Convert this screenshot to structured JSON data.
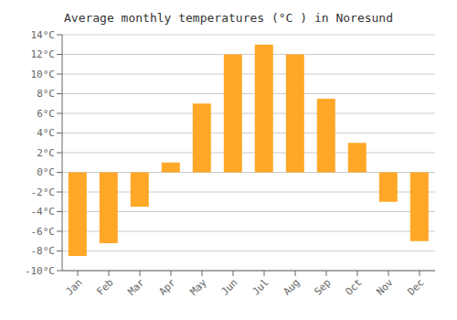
{
  "chart_data": {
    "type": "bar",
    "title": "Average monthly temperatures (°C ) in Noresund",
    "categories": [
      "Jan",
      "Feb",
      "Mar",
      "Apr",
      "May",
      "Jun",
      "Jul",
      "Aug",
      "Sep",
      "Oct",
      "Nov",
      "Dec"
    ],
    "values": [
      -8.5,
      -7.2,
      -3.5,
      1.0,
      7.0,
      12.0,
      13.0,
      12.0,
      7.5,
      3.0,
      -3.0,
      -7.0
    ],
    "color": "#FFA828",
    "ylim": [
      -10,
      14
    ],
    "yticks": [
      {
        "value": -10,
        "label": "-10°C"
      },
      {
        "value": -8,
        "label": "-8°C"
      },
      {
        "value": -6,
        "label": "-6°C"
      },
      {
        "value": -4,
        "label": "-4°C"
      },
      {
        "value": -2,
        "label": "-2°C"
      },
      {
        "value": 0,
        "label": "0°C"
      },
      {
        "value": 2,
        "label": "2°C"
      },
      {
        "value": 4,
        "label": "4°C"
      },
      {
        "value": 6,
        "label": "6°C"
      },
      {
        "value": 8,
        "label": "8°C"
      },
      {
        "value": 10,
        "label": "10°C"
      },
      {
        "value": 12,
        "label": "12°C"
      },
      {
        "value": 14,
        "label": "14°C"
      }
    ],
    "grid": true
  }
}
